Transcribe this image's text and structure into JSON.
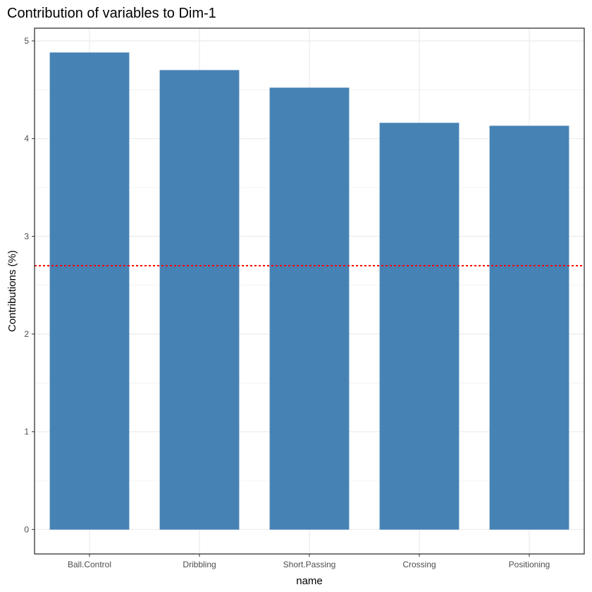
{
  "chart_data": {
    "type": "bar",
    "title": "Contribution of variables to Dim-1",
    "xlabel": "name",
    "ylabel": "Contributions (%)",
    "categories": [
      "Ball.Control",
      "Dribbling",
      "Short.Passing",
      "Crossing",
      "Positioning"
    ],
    "values": [
      4.88,
      4.7,
      4.52,
      4.16,
      4.13
    ],
    "reference_line": {
      "value": 2.7,
      "style": "dotted"
    },
    "ylim": [
      -0.25,
      5.13
    ],
    "yticks": [
      0,
      1,
      2,
      3,
      4,
      5
    ],
    "grid": true,
    "bar_color": "#4682B4",
    "reference_line_color": "#FF0000",
    "panel_border_color": "#333333",
    "grid_color": "#EBEBEB"
  }
}
